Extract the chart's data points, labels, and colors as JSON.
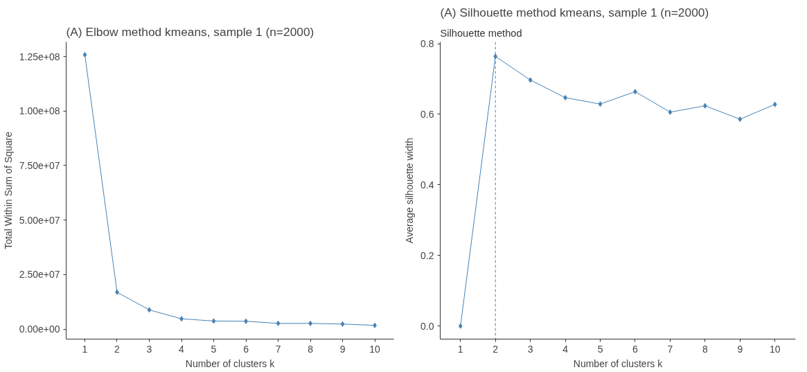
{
  "chart_data": [
    {
      "type": "line",
      "title": "(A) Elbow method kmeans, sample 1 (n=2000)",
      "xlabel": "Number of clusters k",
      "ylabel": "Total Within Sum of Square",
      "x": [
        1,
        2,
        3,
        4,
        5,
        6,
        7,
        8,
        9,
        10
      ],
      "series": [
        {
          "color": "#4682b4",
          "values": [
            125800000,
            16900000,
            8800000,
            4700000,
            3700000,
            3600000,
            2600000,
            2600000,
            2300000,
            1700000
          ]
        }
      ],
      "xlim": [
        0.42,
        10.59
      ],
      "xticks": [
        1,
        2,
        3,
        4,
        5,
        6,
        7,
        8,
        9,
        10
      ],
      "ylim": [
        -4600000,
        131700000
      ],
      "yticks": [
        {
          "value": 0,
          "label": "0.00e+00"
        },
        {
          "value": 25000000,
          "label": "2.50e+07"
        },
        {
          "value": 50000000,
          "label": "5.00e+07"
        },
        {
          "value": 75000000,
          "label": "7.50e+07"
        },
        {
          "value": 100000000,
          "label": "1.00e+08"
        },
        {
          "value": 125000000,
          "label": "1.25e+08"
        }
      ],
      "grid": false,
      "marker": "diamond",
      "line_style": "solid"
    },
    {
      "type": "line",
      "title": "(A) Silhouette method kmeans, sample 1 (n=2000)",
      "subtitle": "Silhouette method",
      "xlabel": "Number of clusters k",
      "ylabel": "Average silhouette width",
      "x": [
        1,
        2,
        3,
        4,
        5,
        6,
        7,
        8,
        9,
        10
      ],
      "series": [
        {
          "color": "#4682b4",
          "values": [
            0.0,
            0.764,
            0.697,
            0.647,
            0.629,
            0.664,
            0.606,
            0.624,
            0.586,
            0.628
          ]
        }
      ],
      "xlim": [
        0.42,
        10.59
      ],
      "xticks": [
        1,
        2,
        3,
        4,
        5,
        6,
        7,
        8,
        9,
        10
      ],
      "ylim": [
        -0.037,
        0.805
      ],
      "yticks": [
        {
          "value": 0,
          "label": "0.0"
        },
        {
          "value": 0.2,
          "label": "0.2"
        },
        {
          "value": 0.4,
          "label": "0.4"
        },
        {
          "value": 0.6,
          "label": "0.6"
        },
        {
          "value": 0.8,
          "label": "0.8"
        }
      ],
      "ref_lines": [
        {
          "axis": "x",
          "value": 2,
          "label": null,
          "color": "#4682b4",
          "line_style": "dashed"
        }
      ],
      "grid": false,
      "marker": "diamond",
      "line_style": "solid"
    }
  ]
}
